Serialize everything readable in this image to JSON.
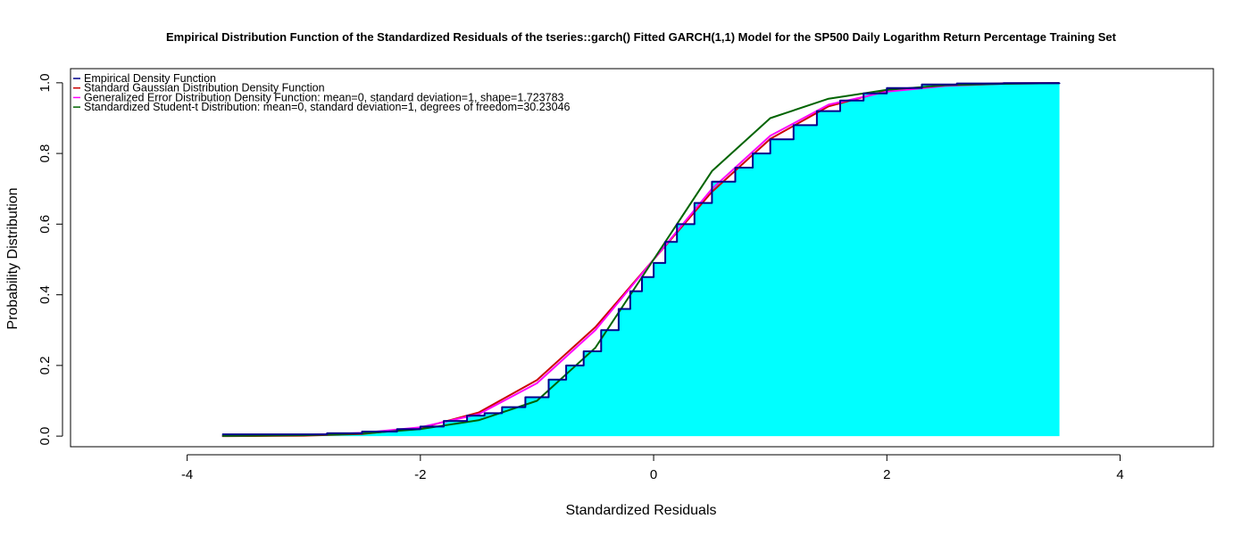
{
  "chart_data": {
    "type": "line",
    "title": "Empirical Distribution Function of the Standardized Residuals of the tseries::garch() Fitted GARCH(1,1) Model for the SP500 Daily Logarithm Return Percentage  Training Set",
    "xlabel": "Standardized Residuals",
    "ylabel": "Probability Distribution",
    "xlim": [
      -5,
      4.8
    ],
    "ylim": [
      -0.03,
      1.04
    ],
    "xticks": [
      -4,
      -2,
      0,
      2,
      4
    ],
    "xtick_labels": [
      "-4",
      "-2",
      "0",
      "2",
      "4"
    ],
    "yticks": [
      0.0,
      0.2,
      0.4,
      0.6,
      0.8,
      1.0
    ],
    "ytick_labels": [
      "0.0",
      "0.2",
      "0.4",
      "0.6",
      "0.8",
      "1.0"
    ],
    "grid": false,
    "legend_position": "top-left",
    "fill_color": "#00ffff",
    "series": [
      {
        "name": "Empirical Density Function",
        "color": "#00008b",
        "step": true,
        "x": [
          -3.7,
          -2.8,
          -2.5,
          -2.2,
          -2.0,
          -1.8,
          -1.6,
          -1.45,
          -1.3,
          -1.1,
          -0.9,
          -0.75,
          -0.6,
          -0.45,
          -0.3,
          -0.2,
          -0.1,
          0.0,
          0.1,
          0.2,
          0.35,
          0.5,
          0.7,
          0.85,
          1.0,
          1.2,
          1.4,
          1.6,
          1.8,
          2.0,
          2.3,
          2.6,
          3.0,
          3.48
        ],
        "y": [
          0.005,
          0.008,
          0.013,
          0.02,
          0.027,
          0.043,
          0.058,
          0.065,
          0.082,
          0.11,
          0.16,
          0.2,
          0.24,
          0.3,
          0.36,
          0.41,
          0.45,
          0.49,
          0.55,
          0.6,
          0.66,
          0.72,
          0.76,
          0.8,
          0.84,
          0.88,
          0.92,
          0.95,
          0.97,
          0.985,
          0.995,
          0.998,
          0.999,
          1.0
        ]
      },
      {
        "name": "Standard Gaussian Distribution Density Function",
        "color": "#cc0000",
        "dist": "normal",
        "x": [
          -3.7,
          -3.0,
          -2.5,
          -2.0,
          -1.5,
          -1.0,
          -0.5,
          0.0,
          0.5,
          1.0,
          1.5,
          2.0,
          2.5,
          3.0,
          3.48
        ],
        "y": [
          0.0001,
          0.0013,
          0.0062,
          0.0228,
          0.0668,
          0.1587,
          0.3085,
          0.5,
          0.6915,
          0.8413,
          0.9332,
          0.9772,
          0.9938,
          0.9987,
          0.9997
        ]
      },
      {
        "name": "Generalized Error Distribution Density Function: mean=0, standard deviation=1, shape=1.723783",
        "color": "#ff00ff",
        "dist": "ged",
        "x": [
          -3.7,
          -3.0,
          -2.5,
          -2.0,
          -1.5,
          -1.0,
          -0.5,
          0.0,
          0.5,
          1.0,
          1.5,
          2.0,
          2.5,
          3.0,
          3.48
        ],
        "y": [
          0.0006,
          0.003,
          0.009,
          0.025,
          0.062,
          0.15,
          0.3,
          0.5,
          0.7,
          0.85,
          0.938,
          0.975,
          0.991,
          0.997,
          0.999
        ]
      },
      {
        "name": "Standardized Student-t Distribution: mean=0, standard deviation=1, degrees of freedom=30.23046",
        "color": "#006400",
        "dist": "std",
        "x": [
          -3.7,
          -3.0,
          -2.5,
          -2.0,
          -1.5,
          -1.0,
          -0.5,
          0.0,
          0.5,
          1.0,
          1.5,
          2.0,
          2.5,
          3.0,
          3.48
        ],
        "y": [
          0.0005,
          0.0025,
          0.007,
          0.02,
          0.045,
          0.1,
          0.25,
          0.5,
          0.75,
          0.9,
          0.955,
          0.98,
          0.993,
          0.997,
          0.999
        ]
      }
    ]
  }
}
